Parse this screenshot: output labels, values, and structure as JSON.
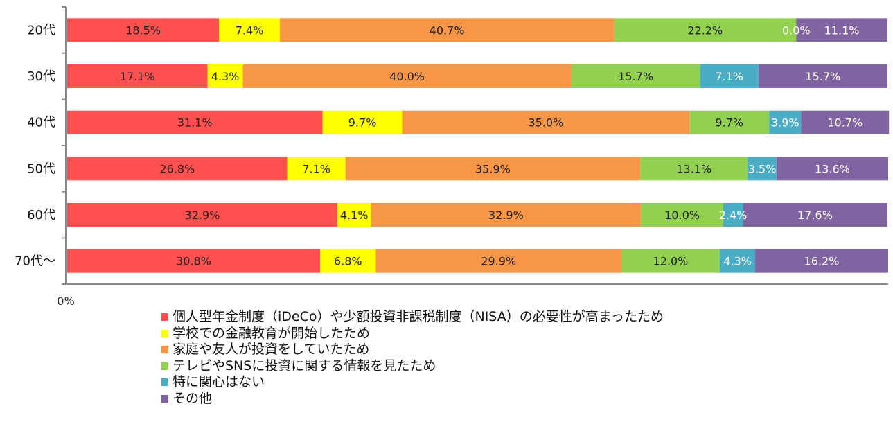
{
  "chart_data": {
    "type": "bar",
    "orientation": "horizontal",
    "stacked": true,
    "categories": [
      "20代",
      "30代",
      "40代",
      "50代",
      "60代",
      "70代～"
    ],
    "series": [
      {
        "name": "個人型年金制度（iDeCo）や少額投資非課税制度（NISA）の必要性が高まったため",
        "color": "#ff5050",
        "label_color": "#222222",
        "values": [
          18.5,
          17.1,
          31.1,
          26.8,
          32.9,
          30.8
        ],
        "labels": [
          "18.5%",
          "17.1%",
          "31.1%",
          "26.8%",
          "32.9%",
          "30.8%"
        ]
      },
      {
        "name": "学校での金融教育が開始したため",
        "color": "#ffff00",
        "label_color": "#222222",
        "values": [
          7.4,
          4.3,
          9.7,
          7.1,
          4.1,
          6.8
        ],
        "labels": [
          "7.4%",
          "4.3%",
          "9.7%",
          "7.1%",
          "4.1%",
          "6.8%"
        ]
      },
      {
        "name": "家庭や友人が投資をしていたため",
        "color": "#f79646",
        "label_color": "#222222",
        "values": [
          40.7,
          40.0,
          35.0,
          35.9,
          32.9,
          29.9
        ],
        "labels": [
          "40.7%",
          "40.0%",
          "35.0%",
          "35.9%",
          "32.9%",
          "29.9%"
        ]
      },
      {
        "name": "テレビやSNSに投資に関する情報を見たため",
        "color": "#92d050",
        "label_color": "#222222",
        "values": [
          22.2,
          15.7,
          9.7,
          13.1,
          10.0,
          12.0
        ],
        "labels": [
          "22.2%",
          "15.7%",
          "9.7%",
          "13.1%",
          "10.0%",
          "12.0%"
        ]
      },
      {
        "name": "特に関心はない",
        "color": "#4bacc6",
        "label_color": "#ffffff",
        "values": [
          0.0,
          7.1,
          3.9,
          3.5,
          2.4,
          4.3
        ],
        "labels": [
          "0.0%",
          "7.1%",
          "3.9%",
          "3.5%",
          "2.4%",
          "4.3%"
        ]
      },
      {
        "name": "その他",
        "color": "#8064a2",
        "label_color": "#ffffff",
        "values": [
          11.1,
          15.7,
          10.7,
          13.6,
          17.6,
          16.2
        ],
        "labels": [
          "11.1%",
          "15.7%",
          "10.7%",
          "13.6%",
          "17.6%",
          "16.2%"
        ]
      }
    ],
    "xlim": [
      0,
      100
    ],
    "x_tick_labels": [
      "0%"
    ],
    "grid": false,
    "legend_position": "bottom"
  }
}
